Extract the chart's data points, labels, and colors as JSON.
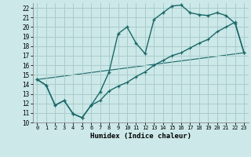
{
  "xlabel": "Humidex (Indice chaleur)",
  "bg_color": "#cce8e8",
  "grid_color": "#aacccc",
  "line_color": "#1a6868",
  "xlim": [
    -0.5,
    23.5
  ],
  "ylim": [
    10,
    22.5
  ],
  "yticks": [
    10,
    11,
    12,
    13,
    14,
    15,
    16,
    17,
    18,
    19,
    20,
    21,
    22
  ],
  "xticks": [
    0,
    1,
    2,
    3,
    4,
    5,
    6,
    7,
    8,
    9,
    10,
    11,
    12,
    13,
    14,
    15,
    16,
    17,
    18,
    19,
    20,
    21,
    22,
    23
  ],
  "line1_x": [
    0,
    1,
    2,
    3,
    4,
    5,
    6,
    7,
    8,
    9,
    10,
    11,
    12,
    13,
    14,
    15,
    16,
    17,
    18,
    19,
    20,
    21,
    22,
    23
  ],
  "line1_y": [
    14.5,
    13.9,
    11.8,
    12.3,
    10.9,
    10.5,
    11.8,
    13.2,
    15.3,
    19.3,
    20.0,
    18.3,
    17.2,
    20.8,
    21.5,
    22.2,
    22.3,
    21.5,
    21.3,
    21.2,
    21.5,
    21.2,
    20.4,
    17.3
  ],
  "line2_x": [
    0,
    1,
    2,
    3,
    4,
    5,
    6,
    7,
    8,
    9,
    10,
    11,
    12,
    13,
    14,
    15,
    16,
    17,
    18,
    19,
    20,
    21,
    22,
    23
  ],
  "line2_y": [
    14.5,
    13.9,
    11.8,
    12.3,
    10.9,
    10.5,
    11.8,
    12.3,
    13.3,
    13.8,
    14.2,
    14.8,
    15.3,
    16.0,
    16.5,
    17.0,
    17.3,
    17.8,
    18.3,
    18.7,
    19.5,
    20.0,
    20.5,
    17.3
  ],
  "line3_x": [
    0,
    23
  ],
  "line3_y": [
    14.5,
    17.3
  ]
}
